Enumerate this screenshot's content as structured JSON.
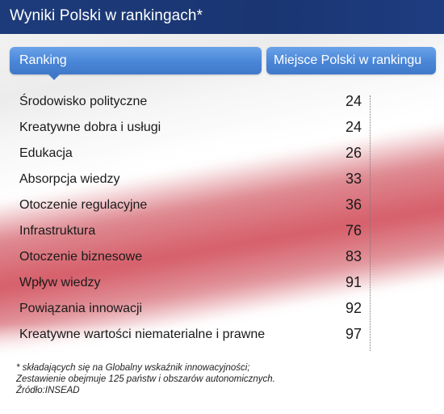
{
  "title": "Wyniki Polski w rankingach*",
  "header": {
    "col_ranking": "Ranking",
    "col_place": "Miejsce Polski w rankingu"
  },
  "rows": [
    {
      "name": "Środowisko polityczne",
      "value": "24"
    },
    {
      "name": "Kreatywne dobra i usługi",
      "value": "24"
    },
    {
      "name": "Edukacja",
      "value": "26"
    },
    {
      "name": "Absorpcja wiedzy",
      "value": "33"
    },
    {
      "name": "Otoczenie regulacyjne",
      "value": "36"
    },
    {
      "name": "Infrastruktura",
      "value": "76"
    },
    {
      "name": "Otoczenie biznesowe",
      "value": "83"
    },
    {
      "name": "Wpływ wiedzy",
      "value": "91"
    },
    {
      "name": "Powiązania innowacji",
      "value": "92"
    },
    {
      "name": "Kreatywne wartości niematerialne i prawne",
      "value": "97"
    }
  ],
  "notes": {
    "line1": "* składających się na Globalny wskaźnik innowacyjności;",
    "line2": "Zestawienie obejmuje 125 państw i obszarów autonomicznych.",
    "line3": "Źródło:INSEAD"
  },
  "colors": {
    "title_bar": "#1d3b7a",
    "header_pill": "#4a86d8",
    "flag_red": "#c42a38"
  }
}
